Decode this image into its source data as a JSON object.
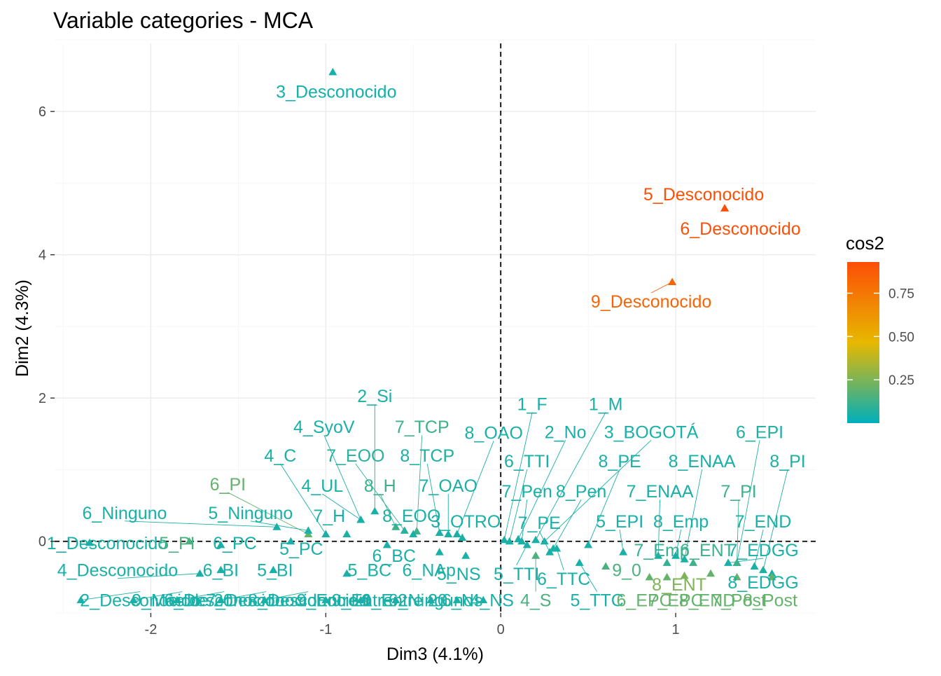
{
  "chart_data": {
    "type": "scatter",
    "title": "Variable categories - MCA",
    "xlabel": "Dim3 (4.1%)",
    "ylabel": "Dim2 (4.3%)",
    "xlim": [
      -2.55,
      1.8
    ],
    "ylim": [
      -1.0,
      6.95
    ],
    "xticks": [
      {
        "v": -2,
        "label": "-2"
      },
      {
        "v": -1,
        "label": "-1"
      },
      {
        "v": 0,
        "label": "0"
      },
      {
        "v": 1,
        "label": "1"
      }
    ],
    "yticks": [
      {
        "v": 0,
        "label": "0"
      },
      {
        "v": 2,
        "label": "2"
      },
      {
        "v": 4,
        "label": "4"
      },
      {
        "v": 6,
        "label": "6"
      }
    ],
    "grid": true,
    "reference_lines": {
      "x": 0,
      "y": 0,
      "style": "dashed"
    },
    "legend": {
      "title": "cos2",
      "position": "right",
      "min": 0.0,
      "max": 0.93,
      "ticks": [
        {
          "v": 0.25,
          "label": "0.25"
        },
        {
          "v": 0.5,
          "label": "0.50"
        },
        {
          "v": 0.75,
          "label": "0.75"
        }
      ],
      "colors": {
        "low": "#00AFBB",
        "mid": "#E7B800",
        "high": "#FC4E07"
      }
    },
    "points": [
      {
        "label": "3_Desconocido",
        "x": -0.96,
        "y": 6.55,
        "cos2": 0.04,
        "lx": -0.94,
        "ly": 6.28
      },
      {
        "label": "5_Desconocido",
        "x": 1.28,
        "y": 4.65,
        "cos2": 0.92,
        "lx": 1.16,
        "ly": 4.85
      },
      {
        "label": "6_Desconocido",
        "x": 1.28,
        "y": 4.65,
        "cos2": 0.92,
        "lx": 1.37,
        "ly": 4.37
      },
      {
        "label": "9_Desconocido",
        "x": 0.98,
        "y": 3.62,
        "cos2": 0.84,
        "lx": 0.86,
        "ly": 3.35
      },
      {
        "label": "2_Si",
        "x": -0.72,
        "y": 0.42,
        "cos2": 0.05,
        "lx": -0.72,
        "ly": 2.03
      },
      {
        "label": "7_TCP",
        "x": -0.48,
        "y": 0.14,
        "cos2": 0.12,
        "lx": -0.45,
        "ly": 1.6
      },
      {
        "label": "4_SyoV",
        "x": -0.8,
        "y": 0.3,
        "cos2": 0.05,
        "lx": -1.01,
        "ly": 1.6
      },
      {
        "label": "8_OAO",
        "x": -0.25,
        "y": 0.1,
        "cos2": 0.05,
        "lx": -0.04,
        "ly": 1.52
      },
      {
        "label": "1_F",
        "x": 0.02,
        "y": 0.02,
        "cos2": 0.05,
        "lx": 0.18,
        "ly": 1.92
      },
      {
        "label": "1_M",
        "x": 0.2,
        "y": 0.02,
        "cos2": 0.05,
        "lx": 0.6,
        "ly": 1.92
      },
      {
        "label": "2_No",
        "x": 0.1,
        "y": 0.03,
        "cos2": 0.05,
        "lx": 0.37,
        "ly": 1.53
      },
      {
        "label": "3_BOGOTÁ",
        "x": 0.25,
        "y": 0.0,
        "cos2": 0.05,
        "lx": 0.86,
        "ly": 1.53
      },
      {
        "label": "6_EPI",
        "x": 1.35,
        "y": -0.3,
        "cos2": 0.06,
        "lx": 1.48,
        "ly": 1.53
      },
      {
        "label": "4_C",
        "x": -1.0,
        "y": 0.1,
        "cos2": 0.05,
        "lx": -1.26,
        "ly": 1.2
      },
      {
        "label": "7_EOO",
        "x": -0.55,
        "y": 0.15,
        "cos2": 0.08,
        "lx": -0.83,
        "ly": 1.2
      },
      {
        "label": "8_TCP",
        "x": -0.35,
        "y": 0.12,
        "cos2": 0.06,
        "lx": -0.42,
        "ly": 1.2
      },
      {
        "label": "6_TTI",
        "x": 0.05,
        "y": 0.0,
        "cos2": 0.05,
        "lx": 0.15,
        "ly": 1.12
      },
      {
        "label": "8_PE",
        "x": 0.5,
        "y": -0.05,
        "cos2": 0.05,
        "lx": 0.68,
        "ly": 1.12
      },
      {
        "label": "8_ENAA",
        "x": 1.05,
        "y": -0.25,
        "cos2": 0.05,
        "lx": 1.15,
        "ly": 1.12
      },
      {
        "label": "8_PI",
        "x": 1.5,
        "y": -0.4,
        "cos2": 0.06,
        "lx": 1.64,
        "ly": 1.12
      },
      {
        "label": "6_PI",
        "x": -1.1,
        "y": 0.1,
        "cos2": 0.2,
        "lx": -1.56,
        "ly": 0.8
      },
      {
        "label": "4_UL",
        "x": -0.8,
        "y": 0.3,
        "cos2": 0.05,
        "lx": -1.02,
        "ly": 0.78
      },
      {
        "label": "8_H",
        "x": -0.6,
        "y": 0.2,
        "cos2": 0.12,
        "lx": -0.69,
        "ly": 0.78
      },
      {
        "label": "7_OAO",
        "x": -0.3,
        "y": 0.1,
        "cos2": 0.05,
        "lx": -0.3,
        "ly": 0.78
      },
      {
        "label": "7_Pen",
        "x": 0.12,
        "y": 0.0,
        "cos2": 0.05,
        "lx": 0.15,
        "ly": 0.7
      },
      {
        "label": "8_Pen",
        "x": 0.3,
        "y": -0.1,
        "cos2": 0.05,
        "lx": 0.46,
        "ly": 0.7
      },
      {
        "label": "7_ENAA",
        "x": 0.9,
        "y": -0.2,
        "cos2": 0.05,
        "lx": 0.91,
        "ly": 0.7
      },
      {
        "label": "7_PI",
        "x": 1.35,
        "y": -0.3,
        "cos2": 0.12,
        "lx": 1.36,
        "ly": 0.7
      },
      {
        "label": "6_Ninguno",
        "x": -1.28,
        "y": 0.2,
        "cos2": 0.05,
        "lx": -2.15,
        "ly": 0.4
      },
      {
        "label": "5_Ninguno",
        "x": -1.1,
        "y": 0.15,
        "cos2": 0.05,
        "lx": -1.43,
        "ly": 0.4
      },
      {
        "label": "7_H",
        "x": -0.88,
        "y": 0.1,
        "cos2": 0.05,
        "lx": -0.98,
        "ly": 0.36
      },
      {
        "label": "8_EOO",
        "x": -0.5,
        "y": 0.1,
        "cos2": 0.05,
        "lx": -0.51,
        "ly": 0.36
      },
      {
        "label": "3_OTRO",
        "x": -0.22,
        "y": 0.05,
        "cos2": 0.05,
        "lx": -0.2,
        "ly": 0.28
      },
      {
        "label": "7_PE",
        "x": 0.28,
        "y": -0.15,
        "cos2": 0.05,
        "lx": 0.22,
        "ly": 0.26
      },
      {
        "label": "5_EPI",
        "x": 0.7,
        "y": -0.15,
        "cos2": 0.05,
        "lx": 0.68,
        "ly": 0.28
      },
      {
        "label": "8_Emp",
        "x": 1.0,
        "y": -0.2,
        "cos2": 0.05,
        "lx": 1.03,
        "ly": 0.28
      },
      {
        "label": "7_END",
        "x": 1.45,
        "y": -0.35,
        "cos2": 0.05,
        "lx": 1.5,
        "ly": 0.28
      },
      {
        "label": "1_Desconocido",
        "x": -2.35,
        "y": -0.02,
        "cos2": 0.05,
        "lx": -2.25,
        "ly": -0.02
      },
      {
        "label": "5_PI",
        "x": -1.78,
        "y": 0.0,
        "cos2": 0.15,
        "lx": -1.85,
        "ly": -0.02
      },
      {
        "label": "6_PC",
        "x": -1.6,
        "y": -0.05,
        "cos2": 0.05,
        "lx": -1.52,
        "ly": -0.02
      },
      {
        "label": "5_PC",
        "x": -1.2,
        "y": 0.0,
        "cos2": 0.05,
        "lx": -1.14,
        "ly": -0.1
      },
      {
        "label": "6_BC",
        "x": -0.65,
        "y": -0.05,
        "cos2": 0.05,
        "lx": -0.61,
        "ly": -0.2
      },
      {
        "label": "7_Emp",
        "x": 0.95,
        "y": -0.3,
        "cos2": 0.1,
        "lx": 0.92,
        "ly": -0.12
      },
      {
        "label": "6_ENT",
        "x": 1.1,
        "y": -0.3,
        "cos2": 0.12,
        "lx": 1.18,
        "ly": -0.12
      },
      {
        "label": "7_EDGG",
        "x": 1.3,
        "y": -0.3,
        "cos2": 0.05,
        "lx": 1.5,
        "ly": -0.12
      },
      {
        "label": "4_Desconocido",
        "x": -1.72,
        "y": -0.45,
        "cos2": 0.05,
        "lx": -2.19,
        "ly": -0.4
      },
      {
        "label": "6_BI",
        "x": -1.6,
        "y": -0.4,
        "cos2": 0.05,
        "lx": -1.6,
        "ly": -0.4
      },
      {
        "label": "5_BI",
        "x": -1.3,
        "y": -0.4,
        "cos2": 0.05,
        "lx": -1.29,
        "ly": -0.4
      },
      {
        "label": "5_BC",
        "x": -0.88,
        "y": -0.45,
        "cos2": 0.05,
        "lx": -0.75,
        "ly": -0.4
      },
      {
        "label": "6_NAp",
        "x": -0.35,
        "y": -0.15,
        "cos2": 0.05,
        "lx": -0.41,
        "ly": -0.4
      },
      {
        "label": "5_NS",
        "x": -0.2,
        "y": -0.2,
        "cos2": 0.05,
        "lx": -0.24,
        "ly": -0.45
      },
      {
        "label": "5_TTI",
        "x": 0.15,
        "y": -0.05,
        "cos2": 0.05,
        "lx": 0.09,
        "ly": -0.45
      },
      {
        "label": "9_0",
        "x": 0.6,
        "y": -0.35,
        "cos2": 0.15,
        "lx": 0.72,
        "ly": -0.4
      },
      {
        "label": "6_TTC",
        "x": 0.32,
        "y": -0.1,
        "cos2": 0.05,
        "lx": 0.36,
        "ly": -0.52
      },
      {
        "label": "8_ENT",
        "x": 1.05,
        "y": -0.48,
        "cos2": 0.25,
        "lx": 1.02,
        "ly": -0.6
      },
      {
        "label": "8_EDGG",
        "x": 1.55,
        "y": -0.45,
        "cos2": 0.05,
        "lx": 1.5,
        "ly": -0.57
      },
      {
        "label": "2_Desconocido",
        "x": -2.4,
        "y": -0.82,
        "cos2": 0.05,
        "lx": -2.06,
        "ly": -0.82
      },
      {
        "label": "9_Más de 20",
        "x": -2.1,
        "y": -0.82,
        "cos2": 0.05,
        "lx": -1.82,
        "ly": -0.82
      },
      {
        "label": "6_Desconocido",
        "x": -1.85,
        "y": -0.82,
        "cos2": 0.05,
        "lx": -1.58,
        "ly": -0.82
      },
      {
        "label": "7_Desconocido",
        "x": -1.6,
        "y": -0.82,
        "cos2": 0.05,
        "lx": -1.34,
        "ly": -0.82
      },
      {
        "label": "8_Desconocido",
        "x": -1.35,
        "y": -0.82,
        "cos2": 0.05,
        "lx": -1.1,
        "ly": -0.82
      },
      {
        "label": "9_Entre 1",
        "x": -1.0,
        "y": -0.82,
        "cos2": 0.05,
        "lx": -0.95,
        "ly": -0.82
      },
      {
        "label": "9_Entre 2",
        "x": -0.8,
        "y": -0.82,
        "cos2": 0.05,
        "lx": -0.75,
        "ly": -0.82
      },
      {
        "label": "9_Entre 20",
        "x": -0.6,
        "y": -0.82,
        "cos2": 0.05,
        "lx": -0.55,
        "ly": -0.82
      },
      {
        "label": "6_Ninguno",
        "x": -0.4,
        "y": -0.82,
        "cos2": 0.05,
        "lx": -0.4,
        "ly": -0.82
      },
      {
        "label": "6_Ns",
        "x": -0.25,
        "y": -0.82,
        "cos2": 0.05,
        "lx": -0.22,
        "ly": -0.82
      },
      {
        "label": "4_NS",
        "x": -0.1,
        "y": -0.82,
        "cos2": 0.05,
        "lx": -0.05,
        "ly": -0.82
      },
      {
        "label": "4_S",
        "x": 0.2,
        "y": -0.2,
        "cos2": 0.15,
        "lx": 0.2,
        "ly": -0.82
      },
      {
        "label": "5_TTC",
        "x": 0.45,
        "y": -0.3,
        "cos2": 0.05,
        "lx": 0.55,
        "ly": -0.82
      },
      {
        "label": "6_EPC",
        "x": 0.85,
        "y": -0.5,
        "cos2": 0.2,
        "lx": 0.82,
        "ly": -0.82
      },
      {
        "label": "7_EPC",
        "x": 0.95,
        "y": -0.5,
        "cos2": 0.2,
        "lx": 1.0,
        "ly": -0.82
      },
      {
        "label": "8_END",
        "x": 1.2,
        "y": -0.45,
        "cos2": 0.2,
        "lx": 1.18,
        "ly": -0.82
      },
      {
        "label": "7_Post",
        "x": 1.35,
        "y": -0.5,
        "cos2": 0.2,
        "lx": 1.36,
        "ly": -0.82
      },
      {
        "label": "8_Post",
        "x": 1.55,
        "y": -0.5,
        "cos2": 0.2,
        "lx": 1.54,
        "ly": -0.82
      }
    ]
  }
}
